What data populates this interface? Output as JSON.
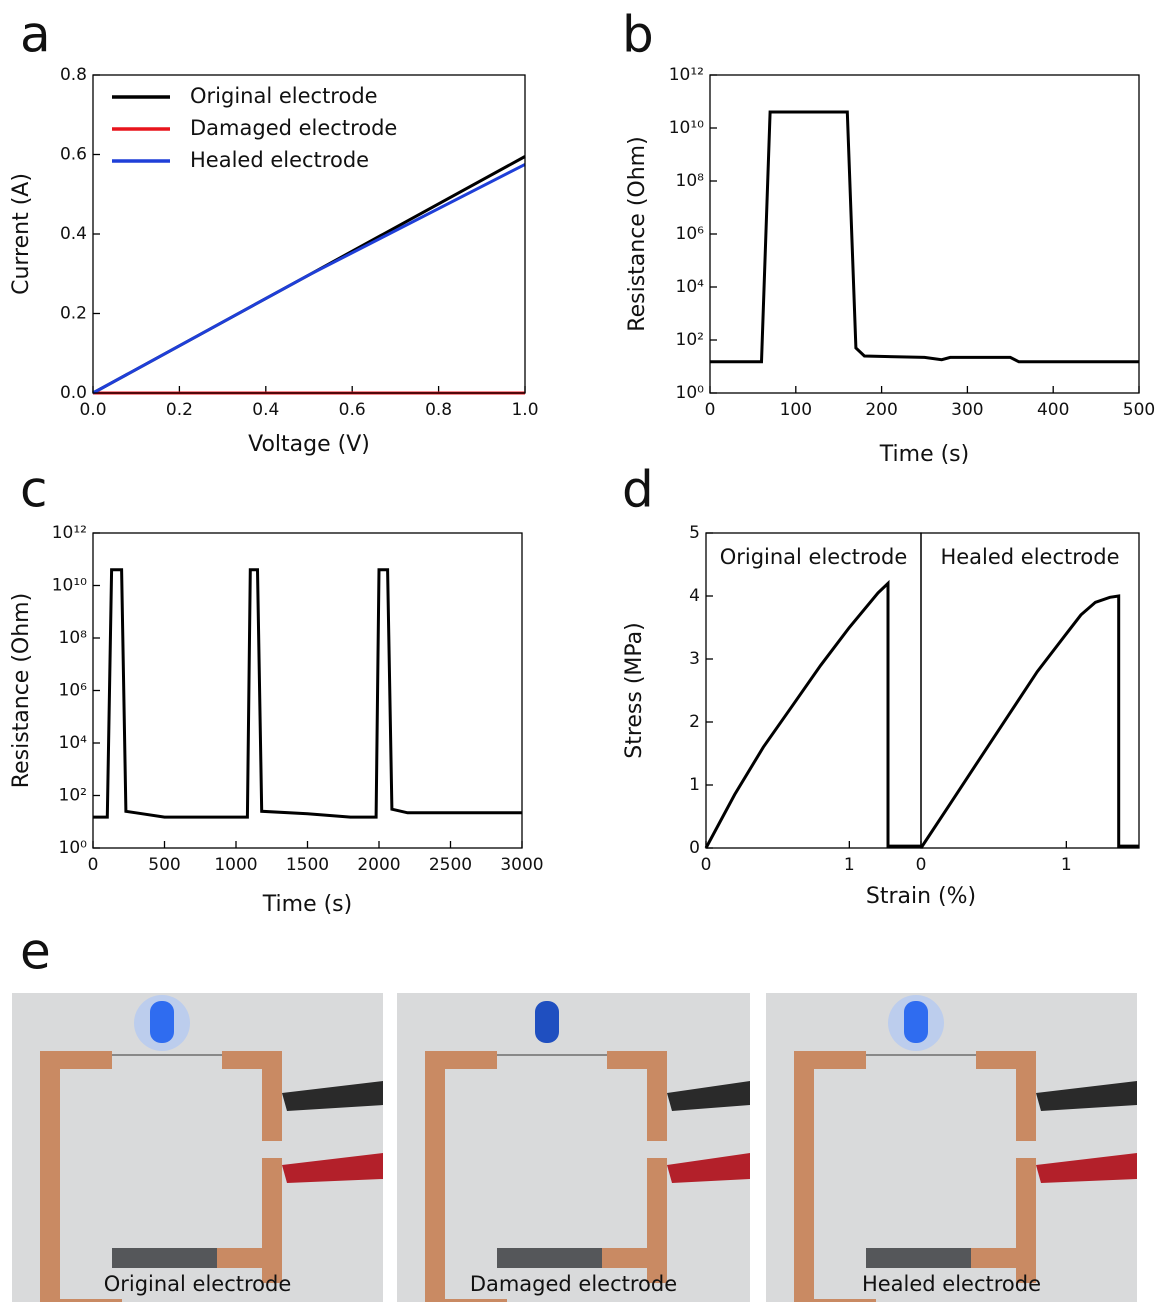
{
  "panel_labels": [
    "a",
    "b",
    "c",
    "d",
    "e"
  ],
  "chart_data": [
    {
      "type": "line",
      "xlabel": "Voltage (V)",
      "ylabel": "Current (A)",
      "x": [
        0,
        0.5,
        1.0
      ],
      "series": [
        {
          "name": "Original electrode",
          "color": "#000000",
          "values": [
            0,
            0.297,
            0.595
          ]
        },
        {
          "name": "Damaged electrode",
          "color": "#e8141c",
          "values": [
            0,
            0,
            0
          ]
        },
        {
          "name": "Healed electrode",
          "color": "#1f3fd8",
          "values": [
            0,
            0.297,
            0.575
          ]
        }
      ],
      "xlim": [
        0,
        1.0
      ],
      "xticks": [
        {
          "value": 0,
          "label": "0.0"
        },
        0.2,
        0.4,
        0.6,
        0.8,
        {
          "value": 1,
          "label": "1.0"
        }
      ],
      "ylim": [
        0,
        0.8
      ],
      "yticks": [
        {
          "value": 0,
          "label": "0.0"
        },
        0.2,
        0.4,
        0.6,
        0.8
      ],
      "legend": "upper left"
    },
    {
      "type": "line",
      "xlabel": "Time (s)",
      "ylabel": "Resistance (Ohm)",
      "log_y": true,
      "x": [
        0,
        60,
        70,
        160,
        170,
        180,
        250,
        270,
        280,
        350,
        360,
        500
      ],
      "series": [
        {
          "color": "#000000",
          "values": [
            15,
            15,
            40000000000,
            40000000000,
            50,
            25,
            22,
            18,
            22,
            22,
            15,
            15
          ]
        }
      ],
      "xlim": [
        0,
        500
      ],
      "xticks": [
        0,
        100,
        200,
        300,
        400,
        500
      ],
      "ylim": [
        1,
        1000000000000
      ],
      "yticks": [
        {
          "value": 1,
          "label": "10⁰"
        },
        {
          "value": 100,
          "label": "10²"
        },
        {
          "value": 10000,
          "label": "10⁴"
        },
        {
          "value": 1000000,
          "label": "10⁶"
        },
        {
          "value": 100000000,
          "label": "10⁸"
        },
        {
          "value": 10000000000,
          "label": "10¹⁰"
        },
        {
          "value": 1000000000000,
          "label": "10¹²"
        }
      ]
    },
    {
      "type": "line",
      "xlabel": "Time (s)",
      "ylabel": "Resistance (Ohm)",
      "log_y": true,
      "x": [
        0,
        100,
        130,
        200,
        230,
        300,
        500,
        1080,
        1100,
        1150,
        1180,
        1500,
        1800,
        1980,
        2000,
        2060,
        2090,
        2200,
        3000
      ],
      "series": [
        {
          "color": "#000000",
          "values": [
            15,
            15,
            40000000000,
            40000000000,
            25,
            22,
            15,
            15,
            40000000000,
            40000000000,
            25,
            20,
            15,
            15,
            40000000000,
            40000000000,
            30,
            22,
            22
          ]
        }
      ],
      "xlim": [
        0,
        3000
      ],
      "xticks": [
        0,
        500,
        1000,
        1500,
        2000,
        2500,
        3000
      ],
      "ylim": [
        1,
        1000000000000
      ],
      "yticks": [
        {
          "value": 1,
          "label": "10⁰"
        },
        {
          "value": 100,
          "label": "10²"
        },
        {
          "value": 10000,
          "label": "10⁴"
        },
        {
          "value": 1000000,
          "label": "10⁶"
        },
        {
          "value": 100000000,
          "label": "10⁸"
        },
        {
          "value": 10000000000,
          "label": "10¹⁰"
        },
        {
          "value": 1000000000000,
          "label": "10¹²"
        }
      ]
    },
    {
      "type": "line",
      "xlabel": "Strain (%)",
      "ylabel": "Stress (MPa)",
      "annotation": "Original electrode",
      "x": [
        0,
        0.2,
        0.4,
        0.6,
        0.8,
        1.0,
        1.2,
        1.27,
        1.27,
        1.5
      ],
      "series": [
        {
          "color": "#000000",
          "values": [
            0,
            0.85,
            1.6,
            2.25,
            2.9,
            3.5,
            4.05,
            4.2,
            0.03,
            0.03
          ]
        }
      ],
      "xlim": [
        0,
        1.5
      ],
      "xticks": [
        0,
        1
      ],
      "ylim": [
        0,
        5
      ],
      "yticks": [
        0,
        1,
        2,
        3,
        4,
        5
      ]
    },
    {
      "type": "line",
      "annotation": "Healed electrode",
      "x": [
        0,
        0.2,
        0.4,
        0.6,
        0.8,
        1.0,
        1.1,
        1.2,
        1.3,
        1.36,
        1.36,
        1.5
      ],
      "series": [
        {
          "color": "#000000",
          "values": [
            0,
            0.7,
            1.4,
            2.1,
            2.8,
            3.4,
            3.7,
            3.9,
            3.98,
            4.0,
            0.03,
            0.03
          ]
        }
      ],
      "xlim": [
        0,
        1.5
      ],
      "xticks": [
        0,
        1
      ],
      "ylim": [
        0,
        5
      ]
    }
  ],
  "photos": {
    "captions": [
      "Original electrode",
      "Damaged electrode",
      "Healed electrode"
    ]
  }
}
